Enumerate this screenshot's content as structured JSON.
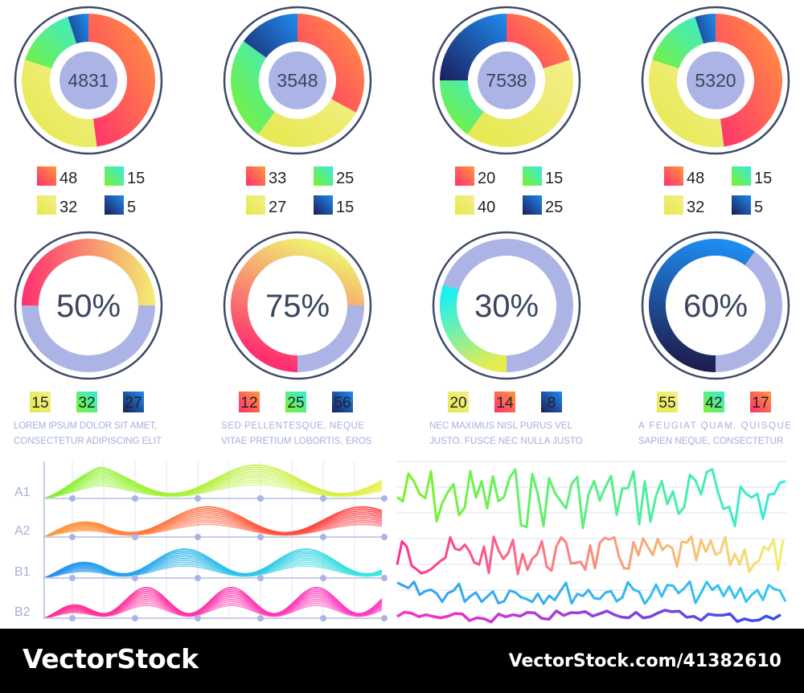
{
  "chart_data": [
    {
      "type": "pie",
      "center_value": "4831",
      "slices": [
        {
          "label": "48",
          "value": 48,
          "gradient": [
            "#ff2e6f",
            "#ff9a3c"
          ]
        },
        {
          "label": "32",
          "value": 32,
          "gradient": [
            "#e4e94a",
            "#f4ee8c"
          ]
        },
        {
          "label": "15",
          "value": 15,
          "gradient": [
            "#7df22a",
            "#36eadf"
          ]
        },
        {
          "label": "5",
          "value": 5,
          "gradient": [
            "#1c1d5a",
            "#1e8cf0"
          ]
        }
      ]
    },
    {
      "type": "pie",
      "center_value": "3548",
      "slices": [
        {
          "label": "33",
          "value": 33,
          "gradient": [
            "#ff2e6f",
            "#ff9a3c"
          ]
        },
        {
          "label": "27",
          "value": 27,
          "gradient": [
            "#e4e94a",
            "#f4ee8c"
          ]
        },
        {
          "label": "25",
          "value": 25,
          "gradient": [
            "#7df22a",
            "#36eadf"
          ]
        },
        {
          "label": "15",
          "value": 15,
          "gradient": [
            "#1c1d5a",
            "#1e8cf0"
          ]
        }
      ]
    },
    {
      "type": "pie",
      "center_value": "7538",
      "slices": [
        {
          "label": "20",
          "value": 20,
          "gradient": [
            "#ff2e6f",
            "#ff9a3c"
          ]
        },
        {
          "label": "40",
          "value": 40,
          "gradient": [
            "#e4e94a",
            "#f4ee8c"
          ]
        },
        {
          "label": "15",
          "value": 15,
          "gradient": [
            "#7df22a",
            "#36eadf"
          ]
        },
        {
          "label": "25",
          "value": 25,
          "gradient": [
            "#1c1d5a",
            "#1e8cf0"
          ]
        }
      ]
    },
    {
      "type": "pie",
      "center_value": "5320",
      "slices": [
        {
          "label": "48",
          "value": 48,
          "gradient": [
            "#ff2e6f",
            "#ff9a3c"
          ]
        },
        {
          "label": "32",
          "value": 32,
          "gradient": [
            "#e4e94a",
            "#f4ee8c"
          ]
        },
        {
          "label": "15",
          "value": 15,
          "gradient": [
            "#7df22a",
            "#36eadf"
          ]
        },
        {
          "label": "5",
          "value": 5,
          "gradient": [
            "#1c1d5a",
            "#1e8cf0"
          ]
        }
      ]
    },
    {
      "type": "pie",
      "center_value": "50%",
      "percent": 50,
      "gradient": [
        "#ff2e6f",
        "#f2ee70"
      ],
      "legend": [
        {
          "label": "15",
          "gradient": [
            "#e4e94a",
            "#f4ee8c"
          ]
        },
        {
          "label": "32",
          "gradient": [
            "#7df22a",
            "#36eadf"
          ]
        },
        {
          "label": "27",
          "gradient": [
            "#1c1d5a",
            "#1e8cf0"
          ]
        }
      ],
      "caption": [
        "LOREM IPSUM DOLOR SIT AMET,",
        "CONSECTETUR ADIPISCING ELIT"
      ]
    },
    {
      "type": "pie",
      "center_value": "75%",
      "percent": 75,
      "gradient": [
        "#ff2e6f",
        "#f0ee70"
      ],
      "legend": [
        {
          "label": "12",
          "gradient": [
            "#ff2e6f",
            "#ff9a3c"
          ]
        },
        {
          "label": "25",
          "gradient": [
            "#7df22a",
            "#36eadf"
          ]
        },
        {
          "label": "56",
          "gradient": [
            "#1c1d5a",
            "#1e8cf0"
          ]
        }
      ],
      "caption": [
        "SED   PELLENTESQUE,   NEQUE",
        "VITAE PRETIUM LOBORTIS, EROS"
      ]
    },
    {
      "type": "pie",
      "center_value": "30%",
      "percent": 30,
      "gradient": [
        "#e4ee50",
        "#1ef0f0"
      ],
      "legend": [
        {
          "label": "20",
          "gradient": [
            "#e4e94a",
            "#f4ee8c"
          ]
        },
        {
          "label": "14",
          "gradient": [
            "#ff2e6f",
            "#ff9a3c"
          ]
        },
        {
          "label": "8",
          "gradient": [
            "#1c1d5a",
            "#1e8cf0"
          ]
        }
      ],
      "caption": [
        "NEC  MAXIMUS  NISL  PURUS  VEL",
        "JUSTO. FUSCE NEC NULLA JUSTO"
      ]
    },
    {
      "type": "pie",
      "center_value": "60%",
      "percent": 60,
      "gradient": [
        "#1e1a4a",
        "#1e8cf0"
      ],
      "legend": [
        {
          "label": "55",
          "gradient": [
            "#e4e94a",
            "#f4ee8c"
          ]
        },
        {
          "label": "42",
          "gradient": [
            "#7df22a",
            "#36eadf"
          ]
        },
        {
          "label": "17",
          "gradient": [
            "#ff2e6f",
            "#ff9a3c"
          ]
        }
      ],
      "caption": [
        "A     FEUGIAT     QUAM.     QUISQUE",
        "SAPIEN NEQUE, CONSECTETUR"
      ]
    },
    {
      "type": "area",
      "series": [
        {
          "name": "A1",
          "amplitude": 0.9,
          "cycles": 2.0,
          "phase": 0.0,
          "gradient": [
            "#7df22a",
            "#e8ef4a"
          ]
        },
        {
          "name": "A2",
          "amplitude": 0.85,
          "cycles": 2.2,
          "phase": 1.2,
          "gradient": [
            "#ff9a3c",
            "#ff2e3c"
          ]
        },
        {
          "name": "B1",
          "amplitude": 0.8,
          "cycles": 2.8,
          "phase": 0.6,
          "gradient": [
            "#1e8cf0",
            "#36eadf"
          ]
        },
        {
          "name": "B2",
          "amplitude": 0.85,
          "cycles": 4.0,
          "phase": 0.3,
          "gradient": [
            "#ff2e8f",
            "#ff38c8"
          ]
        }
      ]
    },
    {
      "type": "line",
      "series": [
        {
          "amplitude": 1.0,
          "gradient": [
            "#7df22a",
            "#36eadf"
          ]
        },
        {
          "amplitude": 0.8,
          "gradient": [
            "#ff2e8f",
            "#f2ee70"
          ]
        },
        {
          "amplitude": 0.6,
          "gradient": [
            "#36a0f0",
            "#36c8f0"
          ]
        },
        {
          "amplitude": 0.1,
          "gradient": [
            "#ff2ec8",
            "#3050f0"
          ]
        }
      ]
    }
  ],
  "colors": {
    "ring": "#3d4a66",
    "hub": "#acb4e6",
    "text_dark": "#3a4560",
    "caption": "#a5aede",
    "grid": "#c8cde8"
  },
  "footer": {
    "brand": "VectorStock",
    "code": "VectorStock.com/41382610"
  }
}
